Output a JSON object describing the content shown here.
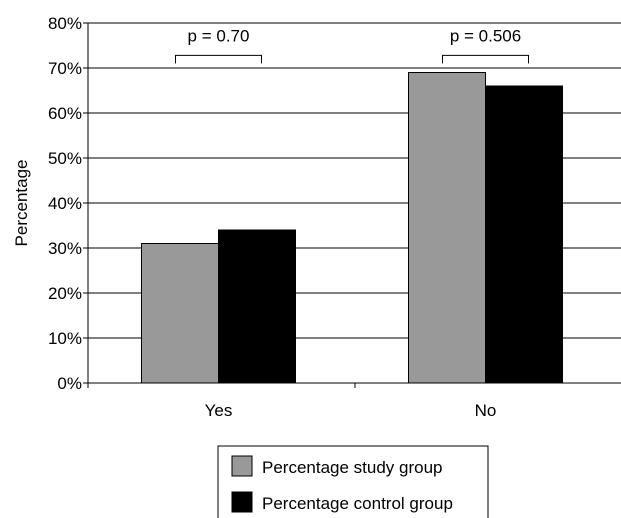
{
  "chart_data": {
    "type": "bar",
    "title": "",
    "xlabel": "",
    "ylabel": "Percentage",
    "categories": [
      "Yes",
      "No"
    ],
    "series": [
      {
        "name": "Percentage study group",
        "values": [
          31,
          69
        ],
        "color": "#999999"
      },
      {
        "name": "Percentage control group",
        "values": [
          34,
          66
        ],
        "color": "#000000"
      }
    ],
    "ylim": [
      0,
      80
    ],
    "yticks": [
      0,
      10,
      20,
      30,
      40,
      50,
      60,
      70,
      80
    ],
    "ytick_labels": [
      "0%",
      "10%",
      "20%",
      "30%",
      "40%",
      "50%",
      "60%",
      "70%",
      "80%"
    ],
    "grid": true,
    "legend_position": "bottom",
    "annotations": [
      "p = 0.70",
      "p = 0.506"
    ]
  }
}
